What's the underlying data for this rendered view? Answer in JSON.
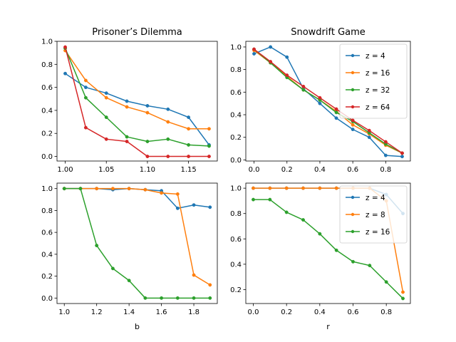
{
  "figure": {
    "background": "#ffffff"
  },
  "chart_data": [
    {
      "type": "line",
      "title": "Prisoner’s Dilemma",
      "xlabel": "",
      "ylabel": "",
      "xlim": [
        0.99,
        1.185
      ],
      "ylim": [
        -0.04,
        1.0
      ],
      "xticks": [
        "1.00",
        "1.05",
        "1.10",
        "1.15"
      ],
      "yticks": [
        "0.0",
        "0.2",
        "0.4",
        "0.6",
        "0.8",
        "1.0"
      ],
      "grid": false,
      "legend": null,
      "x": [
        1.0,
        1.025,
        1.05,
        1.075,
        1.1,
        1.125,
        1.15,
        1.175
      ],
      "series": [
        {
          "name": "z = 4",
          "color": "#1f77b4",
          "values": [
            0.72,
            0.6,
            0.55,
            0.48,
            0.44,
            0.41,
            0.34,
            0.1
          ]
        },
        {
          "name": "z = 16",
          "color": "#ff7f0e",
          "values": [
            0.92,
            0.66,
            0.51,
            0.43,
            0.38,
            0.3,
            0.24,
            0.24
          ]
        },
        {
          "name": "z = 32",
          "color": "#2ca02c",
          "values": [
            0.94,
            0.51,
            0.34,
            0.17,
            0.13,
            0.15,
            0.1,
            0.09
          ]
        },
        {
          "name": "z = 64",
          "color": "#d62728",
          "values": [
            0.95,
            0.25,
            0.15,
            0.13,
            0.0,
            0.0,
            0.0,
            0.0
          ]
        }
      ]
    },
    {
      "type": "line",
      "title": "Snowdrift Game",
      "xlabel": "",
      "ylabel": "",
      "xlim": [
        -0.05,
        0.95
      ],
      "ylim": [
        -0.01,
        1.05
      ],
      "xticks": [
        "0.0",
        "0.2",
        "0.4",
        "0.6",
        "0.8"
      ],
      "yticks": [
        "0.0",
        "0.2",
        "0.4",
        "0.6",
        "0.8",
        "1.0"
      ],
      "grid": false,
      "legend": "top-right",
      "x": [
        0.0,
        0.1,
        0.2,
        0.3,
        0.4,
        0.5,
        0.6,
        0.7,
        0.8,
        0.9
      ],
      "series": [
        {
          "name": "z = 4",
          "color": "#1f77b4",
          "values": [
            0.94,
            1.0,
            0.91,
            0.63,
            0.5,
            0.37,
            0.27,
            0.2,
            0.04,
            0.03
          ]
        },
        {
          "name": "z = 16",
          "color": "#ff7f0e",
          "values": [
            0.97,
            0.86,
            0.74,
            0.62,
            0.53,
            0.43,
            0.31,
            0.23,
            0.13,
            0.06
          ]
        },
        {
          "name": "z = 32",
          "color": "#2ca02c",
          "values": [
            0.98,
            0.86,
            0.73,
            0.62,
            0.53,
            0.42,
            0.34,
            0.24,
            0.14,
            0.06
          ]
        },
        {
          "name": "z = 64",
          "color": "#d62728",
          "values": [
            0.98,
            0.87,
            0.75,
            0.65,
            0.55,
            0.45,
            0.35,
            0.26,
            0.16,
            0.06
          ]
        }
      ]
    },
    {
      "type": "line",
      "title": "",
      "xlabel": "b",
      "ylabel": "",
      "xlim": [
        0.955,
        1.945
      ],
      "ylim": [
        -0.05,
        1.05
      ],
      "xticks": [
        "1.0",
        "1.2",
        "1.4",
        "1.6",
        "1.8"
      ],
      "yticks": [
        "0.0",
        "0.2",
        "0.4",
        "0.6",
        "0.8",
        "1.0"
      ],
      "grid": false,
      "legend": null,
      "x": [
        1.0,
        1.1,
        1.2,
        1.3,
        1.4,
        1.5,
        1.6,
        1.7,
        1.8,
        1.9
      ],
      "series": [
        {
          "name": "z = 4",
          "color": "#1f77b4",
          "values": [
            1.0,
            1.0,
            1.0,
            0.99,
            1.0,
            0.99,
            0.98,
            0.82,
            0.85,
            0.83
          ]
        },
        {
          "name": "z = 16",
          "color": "#ff7f0e",
          "values": [
            1.0,
            1.0,
            1.0,
            1.0,
            1.0,
            0.99,
            0.96,
            0.95,
            0.21,
            0.12
          ]
        },
        {
          "name": "z = 32",
          "color": "#2ca02c",
          "values": [
            1.0,
            1.0,
            0.48,
            0.27,
            0.16,
            0.0,
            0.0,
            0.0,
            0.0,
            0.0
          ]
        }
      ]
    },
    {
      "type": "line",
      "title": "",
      "xlabel": "r",
      "ylabel": "",
      "xlim": [
        -0.045,
        0.945
      ],
      "ylim": [
        0.09,
        1.04
      ],
      "xticks": [
        "0.0",
        "0.2",
        "0.4",
        "0.6",
        "0.8"
      ],
      "yticks": [
        "0.2",
        "0.4",
        "0.6",
        "0.8",
        "1.0"
      ],
      "grid": false,
      "legend": "top-right",
      "x": [
        0.0,
        0.1,
        0.2,
        0.3,
        0.4,
        0.5,
        0.6,
        0.7,
        0.8,
        0.9
      ],
      "series": [
        {
          "name": "z = 4",
          "color": "#1f77b4",
          "values": [
            1.0,
            1.0,
            1.0,
            1.0,
            1.0,
            1.0,
            1.0,
            1.0,
            0.95,
            0.8
          ]
        },
        {
          "name": "z = 8",
          "color": "#ff7f0e",
          "values": [
            1.0,
            1.0,
            1.0,
            1.0,
            1.0,
            1.0,
            1.0,
            1.0,
            0.9,
            0.18
          ]
        },
        {
          "name": "z = 16",
          "color": "#2ca02c",
          "values": [
            0.91,
            0.91,
            0.81,
            0.75,
            0.64,
            0.51,
            0.42,
            0.39,
            0.26,
            0.13
          ]
        }
      ]
    }
  ]
}
